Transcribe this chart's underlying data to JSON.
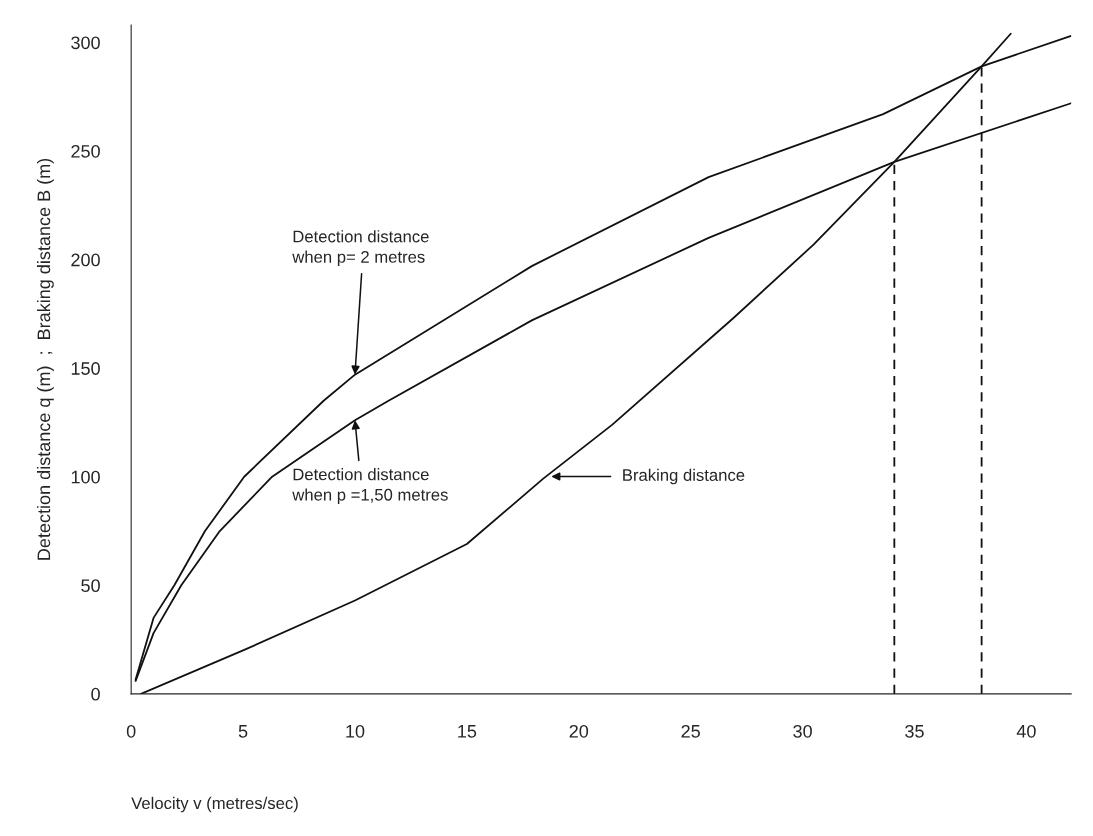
{
  "chart_data": {
    "type": "line",
    "xlabel": "Velocity v (metres/sec)",
    "ylabel": "Detection distance q (m)  ;  Braking distance B (m)",
    "xlim": [
      0,
      42
    ],
    "ylim": [
      0,
      308
    ],
    "xticks": [
      0,
      5,
      10,
      15,
      20,
      25,
      30,
      35,
      40
    ],
    "yticks": [
      0,
      50,
      100,
      150,
      200,
      250,
      300
    ],
    "grid": false,
    "legend": false,
    "marker": "none",
    "series": [
      {
        "color": "#111111",
        "line_style": "solid",
        "x": [
          0.2,
          1.0,
          1.93,
          3.3,
          5.05,
          8.6,
          10.0,
          17.9,
          25.8,
          33.6,
          38.0,
          42.0
        ],
        "values": [
          6.6,
          35,
          50,
          75,
          100,
          135,
          147,
          197,
          238,
          267,
          289,
          303
        ]
      },
      {
        "color": "#111111",
        "line_style": "solid",
        "x": [
          0.2,
          1.0,
          2.24,
          3.96,
          6.3,
          10.0,
          11.5,
          17.9,
          25.8,
          34.1,
          42.0
        ],
        "values": [
          6,
          28,
          50,
          75,
          100,
          126,
          135,
          172,
          210,
          245,
          272
        ]
      },
      {
        "color": "#111111",
        "line_style": "solid",
        "x": [
          0.44,
          5,
          10,
          15,
          18.4,
          21.5,
          26.9,
          30.5,
          34.1,
          38.0,
          39.3
        ],
        "values": [
          0,
          20,
          43,
          69,
          99,
          124,
          173,
          207,
          245,
          289,
          304
        ]
      },
      {
        "color": "#111111",
        "line_style": "dashed",
        "x": [
          34.1,
          34.1
        ],
        "values": [
          0,
          245
        ]
      },
      {
        "color": "#111111",
        "line_style": "dashed",
        "x": [
          38.0,
          38.0
        ],
        "values": [
          0,
          289
        ]
      }
    ],
    "annotations": [
      {
        "text": "Detection distance\nwhen p= 2 metres",
        "x": 10.0,
        "y": 147
      },
      {
        "text": "Detection distance\nwhen p =1,50 metres",
        "x": 10.0,
        "y": 126
      },
      "Braking distance"
    ]
  }
}
